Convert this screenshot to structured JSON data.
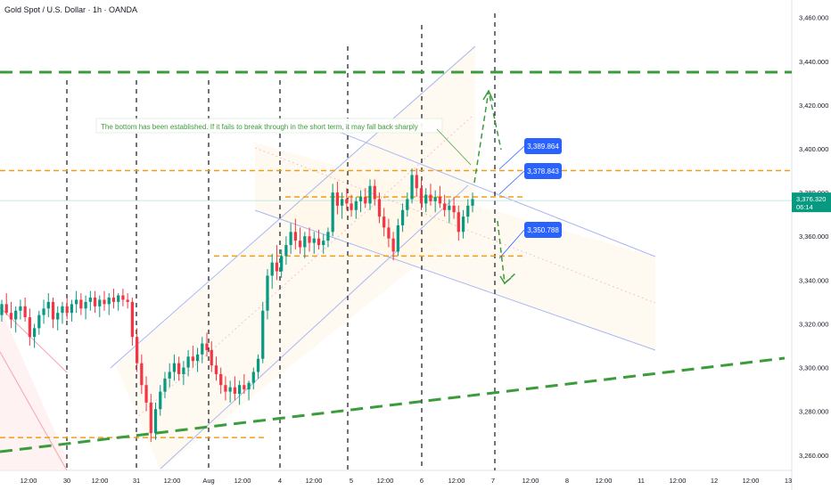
{
  "chart_data": {
    "type": "candlestick",
    "title": "Gold Spot / U.S. Dollar · 1h · OANDA",
    "ylim": [
      3253,
      3468
    ],
    "y_ticks": [
      {
        "value": 3260,
        "label": "3,260.000"
      },
      {
        "value": 3280,
        "label": "3,280.000"
      },
      {
        "value": 3300,
        "label": "3,300.000"
      },
      {
        "value": 3320,
        "label": "3,320.000"
      },
      {
        "value": 3340,
        "label": "3,340.000"
      },
      {
        "value": 3360,
        "label": "3,360.000"
      },
      {
        "value": 3380,
        "label": "3,380.000"
      },
      {
        "value": 3400,
        "label": "3,400.000"
      },
      {
        "value": 3420,
        "label": "3,420.000"
      },
      {
        "value": 3440,
        "label": "3,440.000"
      },
      {
        "value": 3460,
        "label": "3,460.000"
      }
    ],
    "x_ticks": [
      "12:00",
      "30",
      "12:00",
      "31",
      "12:00",
      "Aug",
      "12:00",
      "4",
      "12:00",
      "5",
      "12:00",
      "6",
      "12:00",
      "7",
      "12:00",
      "8",
      "12:00",
      "11",
      "12:00",
      "12",
      "12:00",
      "13"
    ],
    "current_price": {
      "value": 3376.32,
      "label": "3,376.320",
      "countdown": "06:14"
    },
    "price_tags": [
      {
        "value": 3389.864,
        "label": "3,389.864"
      },
      {
        "value": 3378.843,
        "label": "3,378.843"
      },
      {
        "value": 3350.788,
        "label": "3,350.788"
      }
    ],
    "horizontal_levels": [
      {
        "value": 3435,
        "style": "green-dashed"
      },
      {
        "value": 3390,
        "style": "orange-dashed"
      },
      {
        "value": 3378,
        "style": "orange-dashed"
      },
      {
        "value": 3351,
        "style": "orange-dashed"
      },
      {
        "value": 3268,
        "style": "orange-dashed"
      }
    ],
    "annotation": "The bottom has been established. If it fails to break through in the short term, it may fall back sharply",
    "candles": [
      [
        3324,
        3331,
        3321,
        3329
      ],
      [
        3329,
        3334,
        3324,
        3325
      ],
      [
        3325,
        3330,
        3318,
        3322
      ],
      [
        3322,
        3328,
        3316,
        3326
      ],
      [
        3326,
        3331,
        3322,
        3328
      ],
      [
        3328,
        3332,
        3321,
        3323
      ],
      [
        3323,
        3327,
        3310,
        3314
      ],
      [
        3314,
        3320,
        3309,
        3318
      ],
      [
        3318,
        3326,
        3315,
        3324
      ],
      [
        3324,
        3331,
        3320,
        3327
      ],
      [
        3327,
        3334,
        3323,
        3330
      ],
      [
        3330,
        3332,
        3318,
        3322
      ],
      [
        3322,
        3328,
        3317,
        3325
      ],
      [
        3325,
        3330,
        3320,
        3328
      ],
      [
        3328,
        3332,
        3322,
        3325
      ],
      [
        3325,
        3331,
        3321,
        3329
      ],
      [
        3329,
        3335,
        3325,
        3331
      ],
      [
        3331,
        3334,
        3324,
        3327
      ],
      [
        3327,
        3333,
        3322,
        3330
      ],
      [
        3330,
        3335,
        3326,
        3332
      ],
      [
        3332,
        3335,
        3325,
        3328
      ],
      [
        3328,
        3333,
        3323,
        3331
      ],
      [
        3331,
        3335,
        3326,
        3329
      ],
      [
        3329,
        3334,
        3324,
        3332
      ],
      [
        3332,
        3336,
        3327,
        3330
      ],
      [
        3330,
        3334,
        3326,
        3333
      ],
      [
        3333,
        3336,
        3328,
        3331
      ],
      [
        3331,
        3334,
        3327,
        3330
      ],
      [
        3330,
        3332,
        3310,
        3314
      ],
      [
        3314,
        3318,
        3298,
        3302
      ],
      [
        3302,
        3306,
        3288,
        3292
      ],
      [
        3292,
        3296,
        3280,
        3284
      ],
      [
        3284,
        3288,
        3266,
        3270
      ],
      [
        3270,
        3284,
        3267,
        3281
      ],
      [
        3281,
        3292,
        3278,
        3289
      ],
      [
        3289,
        3298,
        3286,
        3295
      ],
      [
        3295,
        3302,
        3291,
        3298
      ],
      [
        3298,
        3306,
        3294,
        3302
      ],
      [
        3302,
        3305,
        3294,
        3297
      ],
      [
        3297,
        3303,
        3292,
        3300
      ],
      [
        3300,
        3308,
        3296,
        3305
      ],
      [
        3305,
        3310,
        3300,
        3303
      ],
      [
        3303,
        3309,
        3298,
        3306
      ],
      [
        3306,
        3314,
        3302,
        3311
      ],
      [
        3311,
        3316,
        3305,
        3308
      ],
      [
        3308,
        3312,
        3298,
        3301
      ],
      [
        3301,
        3305,
        3294,
        3297
      ],
      [
        3297,
        3300,
        3288,
        3292
      ],
      [
        3292,
        3296,
        3285,
        3289
      ],
      [
        3289,
        3294,
        3284,
        3291
      ],
      [
        3291,
        3296,
        3285,
        3288
      ],
      [
        3288,
        3294,
        3283,
        3292
      ],
      [
        3292,
        3297,
        3288,
        3290
      ],
      [
        3290,
        3294,
        3285,
        3293
      ],
      [
        3293,
        3300,
        3290,
        3298
      ],
      [
        3298,
        3306,
        3295,
        3304
      ],
      [
        3304,
        3330,
        3302,
        3326
      ],
      [
        3326,
        3345,
        3322,
        3342
      ],
      [
        3342,
        3352,
        3336,
        3348
      ],
      [
        3348,
        3356,
        3340,
        3344
      ],
      [
        3344,
        3354,
        3341,
        3351
      ],
      [
        3351,
        3360,
        3347,
        3356
      ],
      [
        3356,
        3366,
        3352,
        3362
      ],
      [
        3362,
        3368,
        3354,
        3358
      ],
      [
        3358,
        3364,
        3352,
        3355
      ],
      [
        3355,
        3362,
        3350,
        3360
      ],
      [
        3360,
        3364,
        3353,
        3357
      ],
      [
        3357,
        3362,
        3352,
        3359
      ],
      [
        3359,
        3363,
        3354,
        3356
      ],
      [
        3356,
        3361,
        3352,
        3358
      ],
      [
        3358,
        3364,
        3355,
        3362
      ],
      [
        3362,
        3384,
        3360,
        3380
      ],
      [
        3380,
        3385,
        3370,
        3374
      ],
      [
        3374,
        3380,
        3368,
        3377
      ],
      [
        3377,
        3382,
        3372,
        3375
      ],
      [
        3375,
        3379,
        3369,
        3372
      ],
      [
        3372,
        3378,
        3368,
        3376
      ],
      [
        3376,
        3381,
        3371,
        3378
      ],
      [
        3378,
        3382,
        3373,
        3375
      ],
      [
        3375,
        3386,
        3372,
        3383
      ],
      [
        3383,
        3386,
        3374,
        3377
      ],
      [
        3377,
        3380,
        3366,
        3369
      ],
      [
        3369,
        3373,
        3360,
        3364
      ],
      [
        3364,
        3368,
        3355,
        3359
      ],
      [
        3359,
        3362,
        3349,
        3353
      ],
      [
        3353,
        3368,
        3351,
        3365
      ],
      [
        3365,
        3375,
        3362,
        3372
      ],
      [
        3372,
        3380,
        3369,
        3377
      ],
      [
        3377,
        3391,
        3375,
        3388
      ],
      [
        3388,
        3391,
        3378,
        3382
      ],
      [
        3382,
        3386,
        3372,
        3375
      ],
      [
        3375,
        3382,
        3371,
        3379
      ],
      [
        3379,
        3384,
        3374,
        3376
      ],
      [
        3376,
        3381,
        3371,
        3378
      ],
      [
        3378,
        3383,
        3373,
        3375
      ],
      [
        3375,
        3379,
        3369,
        3372
      ],
      [
        3372,
        3377,
        3366,
        3374
      ],
      [
        3374,
        3378,
        3368,
        3371
      ],
      [
        3371,
        3374,
        3358,
        3362
      ],
      [
        3362,
        3372,
        3359,
        3369
      ],
      [
        3369,
        3377,
        3366,
        3374
      ],
      [
        3374,
        3380,
        3371,
        3377
      ]
    ]
  }
}
